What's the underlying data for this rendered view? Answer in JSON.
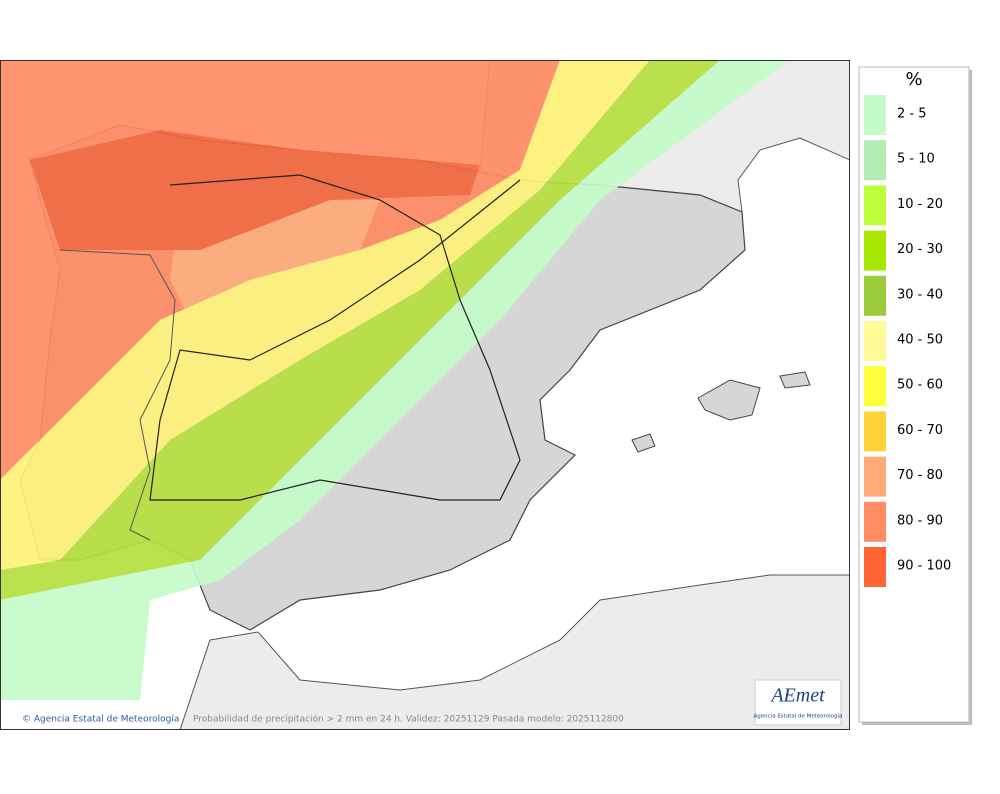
{
  "map": {
    "caption": "Probabilidad de precipitación > 2 mm en 24 h. Validez: 20251129 Pasada modelo: 2025112800",
    "credit": "© Agencia Estatal de Meteorología",
    "logo": {
      "name": "AEmet",
      "subtitle": "Agencia Estatal de Meteorología"
    }
  },
  "legend": {
    "title": "%",
    "items": [
      {
        "label": "2 - 5",
        "color": "#c4fcc8"
      },
      {
        "label": "5 - 10",
        "color": "#b4ecb6"
      },
      {
        "label": "10 - 20",
        "color": "#beff3c"
      },
      {
        "label": "20 - 30",
        "color": "#a6e600"
      },
      {
        "label": "30 - 40",
        "color": "#9ccc3c"
      },
      {
        "label": "40 - 50",
        "color": "#fffa96"
      },
      {
        "label": "50 - 60",
        "color": "#ffff3c"
      },
      {
        "label": "60 - 70",
        "color": "#ffd23c"
      },
      {
        "label": "70 - 80",
        "color": "#ffaa78"
      },
      {
        "label": "80 - 90",
        "color": "#ff8c64"
      },
      {
        "label": "90 - 100",
        "color": "#ff6432"
      }
    ]
  }
}
